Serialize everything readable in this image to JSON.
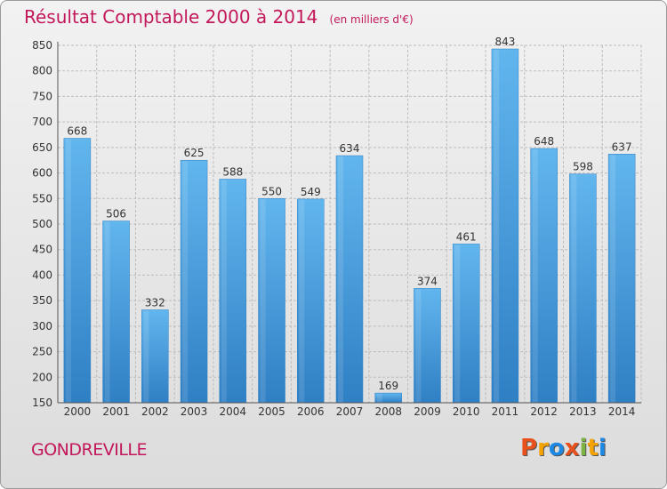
{
  "chart_data": {
    "type": "bar",
    "title": "Résultat Comptable 2000 à 2014",
    "subtitle": "(en milliers d'€)",
    "categories": [
      "2000",
      "2001",
      "2002",
      "2003",
      "2004",
      "2005",
      "2006",
      "2007",
      "2008",
      "2009",
      "2010",
      "2011",
      "2012",
      "2013",
      "2014"
    ],
    "values": [
      668,
      506,
      332,
      625,
      588,
      550,
      549,
      634,
      169,
      374,
      461,
      843,
      648,
      598,
      637
    ],
    "ylim": [
      150,
      850
    ],
    "yticks": [
      150,
      200,
      250,
      300,
      350,
      400,
      450,
      500,
      550,
      600,
      650,
      700,
      750,
      800,
      850
    ],
    "grid": true,
    "bar_color": "#4a9fdf",
    "xlabel": "",
    "ylabel": ""
  },
  "footer": {
    "commune": "GONDREVILLE",
    "brand": "Proxiti",
    "brand_colors": [
      "#e8501e",
      "#f5a300",
      "#1e88e5",
      "#e8501e",
      "#7cb342",
      "#f5a300",
      "#1e88e5"
    ]
  },
  "colors": {
    "title": "#c2185b",
    "grid": "#bdbdbd",
    "axis_text": "#333333"
  }
}
